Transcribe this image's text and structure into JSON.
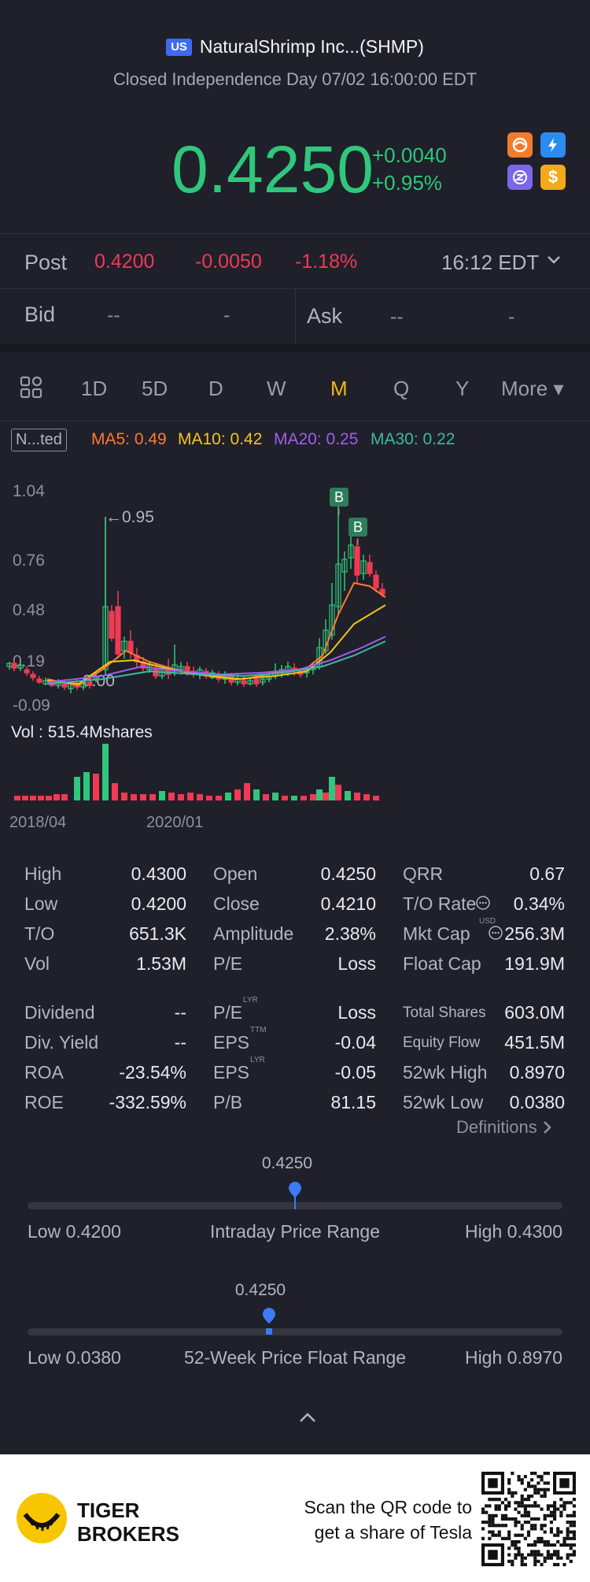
{
  "header": {
    "badge": "US",
    "name": "NaturalShrimp Inc...(SHMP)",
    "status": "Closed Independence Day 07/02 16:00:00 EDT",
    "price": "0.4250",
    "change": "+0.0040",
    "change_pct": "+0.95%",
    "icons": [
      "orange-swirl-icon",
      "lightning-icon",
      "purple-z-icon",
      "dollar-icon"
    ]
  },
  "post": {
    "label": "Post",
    "price": "0.4200",
    "change": "-0.0050",
    "change_pct": "-1.18%",
    "time": "16:12 EDT"
  },
  "bidask": {
    "bid_label": "Bid",
    "bid_price": "--",
    "bid_size": "-",
    "ask_label": "Ask",
    "ask_price": "--",
    "ask_size": "-"
  },
  "tabs": [
    "1D",
    "5D",
    "D",
    "W",
    "M",
    "Q",
    "Y"
  ],
  "active_tab": "M",
  "more_label": "More ▾",
  "indicators": {
    "badge": "N...ted",
    "ma5": "MA5: 0.49",
    "ma10": "MA10: 0.42",
    "ma20": "MA20: 0.25",
    "ma30": "MA30: 0.22"
  },
  "chart_data": {
    "type": "candlestick",
    "y_ticks": [
      "1.04",
      "0.76",
      "0.48",
      "0.19",
      "-0.09"
    ],
    "ylim": [
      -0.09,
      1.04
    ],
    "annotation_high": "←0.95",
    "annotation_low": "←0.00",
    "markers": [
      "B",
      "B"
    ],
    "volume_label": "Vol  : 515.4Mshares",
    "x_ticks": [
      "2018/04",
      "2020/01"
    ],
    "colors": {
      "up": "#2fc77c",
      "down": "#f03a54",
      "ma5": "#ff7a2f",
      "ma10": "#f5c518",
      "ma20": "#a25cf0",
      "ma30": "#3fb7a8"
    }
  },
  "stats": {
    "col1": [
      {
        "label": "High",
        "value": "0.4300"
      },
      {
        "label": "Low",
        "value": "0.4200"
      },
      {
        "label": "T/O",
        "value": "651.3K"
      },
      {
        "label": "Vol",
        "value": "1.53M"
      },
      {
        "label": "Dividend",
        "value": "--"
      },
      {
        "label": "Div. Yield",
        "value": "--"
      },
      {
        "label": "ROA",
        "value": "-23.54%"
      },
      {
        "label": "ROE",
        "value": "-332.59%"
      }
    ],
    "col2": [
      {
        "label": "Open",
        "value": "0.4250"
      },
      {
        "label": "Close",
        "value": "0.4210"
      },
      {
        "label": "Amplitude",
        "value": "2.38%"
      },
      {
        "label": "P/E",
        "value": "Loss"
      },
      {
        "label": "P/E",
        "sup": "LYR",
        "value": "Loss"
      },
      {
        "label": "EPS",
        "sup": "TTM",
        "value": "-0.04"
      },
      {
        "label": "EPS",
        "sup": "LYR",
        "value": "-0.05"
      },
      {
        "label": "P/B",
        "value": "81.15"
      }
    ],
    "col3": [
      {
        "label": "QRR",
        "value": "0.67"
      },
      {
        "label": "T/O Rate",
        "value": "0.34%"
      },
      {
        "label": "Mkt Cap",
        "sup": "USD",
        "value": "256.3M"
      },
      {
        "label": "Float Cap",
        "value": "191.9M"
      },
      {
        "label": "Total Shares",
        "value": "603.0M"
      },
      {
        "label": "Equity Flow",
        "value": "451.5M"
      },
      {
        "label": "52wk High",
        "value": "0.8970"
      },
      {
        "label": "52wk Low",
        "value": "0.0380"
      }
    ],
    "definitions": "Definitions"
  },
  "intraday": {
    "value": "0.4250",
    "low": "Low 0.4200",
    "title": "Intraday Price Range",
    "high": "High 0.4300",
    "position": 0.5
  },
  "week52": {
    "value": "0.4250",
    "low": "Low 0.0380",
    "title": "52-Week Price Float Range",
    "high": "High 0.8970",
    "position": 0.451
  },
  "footer": {
    "brand1": "TIGER",
    "brand2": "BROKERS",
    "cta1": "Scan the QR code to",
    "cta2": "get a share of Tesla"
  }
}
